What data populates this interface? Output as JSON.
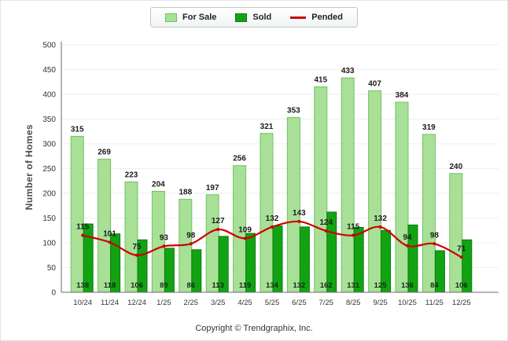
{
  "chart_data": {
    "type": "bar",
    "title": "",
    "categories": [
      "10/24",
      "11/24",
      "12/24",
      "1/25",
      "2/25",
      "3/25",
      "4/25",
      "5/25",
      "6/25",
      "7/25",
      "8/25",
      "9/25",
      "10/25",
      "11/25",
      "12/25"
    ],
    "series": [
      {
        "name": "For Sale",
        "type": "bar",
        "color": "#a7e096",
        "border_color": "#72c261",
        "values": [
          315,
          269,
          223,
          204,
          188,
          197,
          256,
          321,
          353,
          415,
          433,
          407,
          384,
          319,
          240
        ]
      },
      {
        "name": "Sold",
        "type": "bar",
        "color": "#12a312",
        "border_color": "#0a7a0a",
        "values": [
          138,
          118,
          106,
          89,
          86,
          113,
          119,
          134,
          132,
          162,
          131,
          125,
          136,
          84,
          106
        ]
      },
      {
        "name": "Pended",
        "type": "line",
        "color": "#cc0000",
        "values": [
          115,
          101,
          75,
          93,
          98,
          127,
          109,
          132,
          143,
          124,
          115,
          132,
          94,
          98,
          71
        ]
      }
    ],
    "xlabel": "",
    "ylabel": "Number of Homes",
    "ylim": [
      0,
      500
    ],
    "ytick_step": 50,
    "grid": true,
    "legend_position": "top-center"
  },
  "footer": {
    "copyright": "Copyright © Trendgraphix, Inc."
  }
}
